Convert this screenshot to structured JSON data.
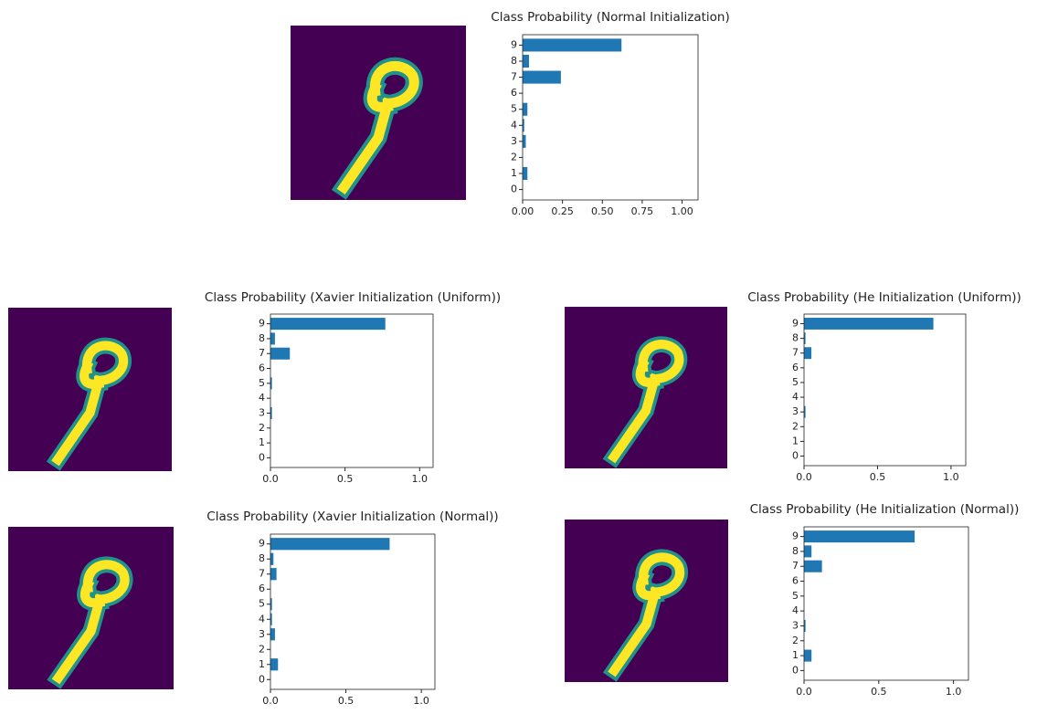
{
  "chart_data": [
    {
      "type": "bar",
      "orientation": "horizontal",
      "title": "Class Probability (Normal Initialization)",
      "categories": [
        "0",
        "1",
        "2",
        "3",
        "4",
        "5",
        "6",
        "7",
        "8",
        "9"
      ],
      "values": [
        0,
        0.03,
        0,
        0.02,
        0.01,
        0.03,
        0,
        0.24,
        0.04,
        0.62
      ],
      "color": "#1f77b4",
      "xlim": [
        0,
        1.1
      ],
      "xticks": [
        {
          "value": 0,
          "label": "0.00"
        },
        {
          "value": 0.25,
          "label": "0.25"
        },
        {
          "value": 0.5,
          "label": "0.50"
        },
        {
          "value": 0.75,
          "label": "0.75"
        },
        {
          "value": 1,
          "label": "1.00"
        }
      ]
    },
    {
      "type": "bar",
      "orientation": "horizontal",
      "title": "Class Probability (Xavier Initialization (Uniform))",
      "categories": [
        "0",
        "1",
        "2",
        "3",
        "4",
        "5",
        "6",
        "7",
        "8",
        "9"
      ],
      "values": [
        0,
        0,
        0,
        0.01,
        0,
        0.01,
        0,
        0.13,
        0.03,
        0.77
      ],
      "color": "#1f77b4",
      "xlim": [
        0,
        1.09
      ],
      "xticks": [
        {
          "value": 0,
          "label": "0.0"
        },
        {
          "value": 0.5,
          "label": "0.5"
        },
        {
          "value": 1,
          "label": "1.0"
        }
      ]
    },
    {
      "type": "bar",
      "orientation": "horizontal",
      "title": "Class Probability (He Initialization (Uniform))",
      "categories": [
        "0",
        "1",
        "2",
        "3",
        "4",
        "5",
        "6",
        "7",
        "8",
        "9"
      ],
      "values": [
        0,
        0,
        0,
        0.01,
        0,
        0,
        0,
        0.05,
        0.01,
        0.88
      ],
      "color": "#1f77b4",
      "xlim": [
        0,
        1.1
      ],
      "xticks": [
        {
          "value": 0,
          "label": "0.0"
        },
        {
          "value": 0.5,
          "label": "0.5"
        },
        {
          "value": 1,
          "label": "1.0"
        }
      ]
    },
    {
      "type": "bar",
      "orientation": "horizontal",
      "title": "Class Probability (Xavier Initialization (Normal))",
      "categories": [
        "0",
        "1",
        "2",
        "3",
        "4",
        "5",
        "6",
        "7",
        "8",
        "9"
      ],
      "values": [
        0,
        0.05,
        0,
        0.03,
        0.01,
        0.01,
        0,
        0.04,
        0.02,
        0.79
      ],
      "color": "#1f77b4",
      "xlim": [
        0,
        1.09
      ],
      "xticks": [
        {
          "value": 0,
          "label": "0.0"
        },
        {
          "value": 0.5,
          "label": "0.5"
        },
        {
          "value": 1,
          "label": "1.0"
        }
      ]
    },
    {
      "type": "bar",
      "orientation": "horizontal",
      "title": "Class Probability (He Initialization (Normal))",
      "categories": [
        "0",
        "1",
        "2",
        "3",
        "4",
        "5",
        "6",
        "7",
        "8",
        "9"
      ],
      "values": [
        0,
        0.05,
        0,
        0.01,
        0,
        0,
        0,
        0.12,
        0.05,
        0.74
      ],
      "color": "#1f77b4",
      "xlim": [
        0,
        1.1
      ],
      "xticks": [
        {
          "value": 0,
          "label": "0.0"
        },
        {
          "value": 0.5,
          "label": "0.5"
        },
        {
          "value": 1,
          "label": "1.0"
        }
      ]
    }
  ]
}
